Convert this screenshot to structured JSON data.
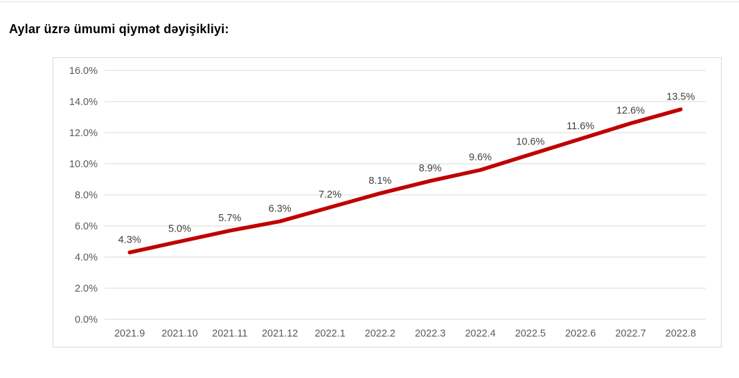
{
  "page": {
    "title": "Aylar üzrə ümumi qiymət dəyişikliyi:"
  },
  "chart_data": {
    "type": "line",
    "categories": [
      "2021.9",
      "2021.10",
      "2021.11",
      "2021.12",
      "2022.1",
      "2022.2",
      "2022.3",
      "2022.4",
      "2022.5",
      "2022.6",
      "2022.7",
      "2022.8"
    ],
    "values": [
      4.3,
      5.0,
      5.7,
      6.3,
      7.2,
      8.1,
      8.9,
      9.6,
      10.6,
      11.6,
      12.6,
      13.5
    ],
    "data_labels": [
      "4.3%",
      "5.0%",
      "5.7%",
      "6.3%",
      "7.2%",
      "8.1%",
      "8.9%",
      "9.6%",
      "10.6%",
      "11.6%",
      "12.6%",
      "13.5%"
    ],
    "title": "Aylar üzrə ümumi qiymət dəyişikliyi:",
    "xlabel": "",
    "ylabel": "",
    "ylim": [
      0,
      16
    ],
    "ytick_step": 2,
    "ytick_labels": [
      "0.0%",
      "2.0%",
      "4.0%",
      "6.0%",
      "8.0%",
      "10.0%",
      "12.0%",
      "14.0%",
      "16.0%"
    ],
    "grid": true,
    "legend": "none",
    "colors": {
      "line": "#C00000",
      "gridline": "#d9d9d9",
      "axis_tick_text": "#595959",
      "data_label_text": "#404040",
      "chart_border": "#d9d9d9"
    }
  }
}
